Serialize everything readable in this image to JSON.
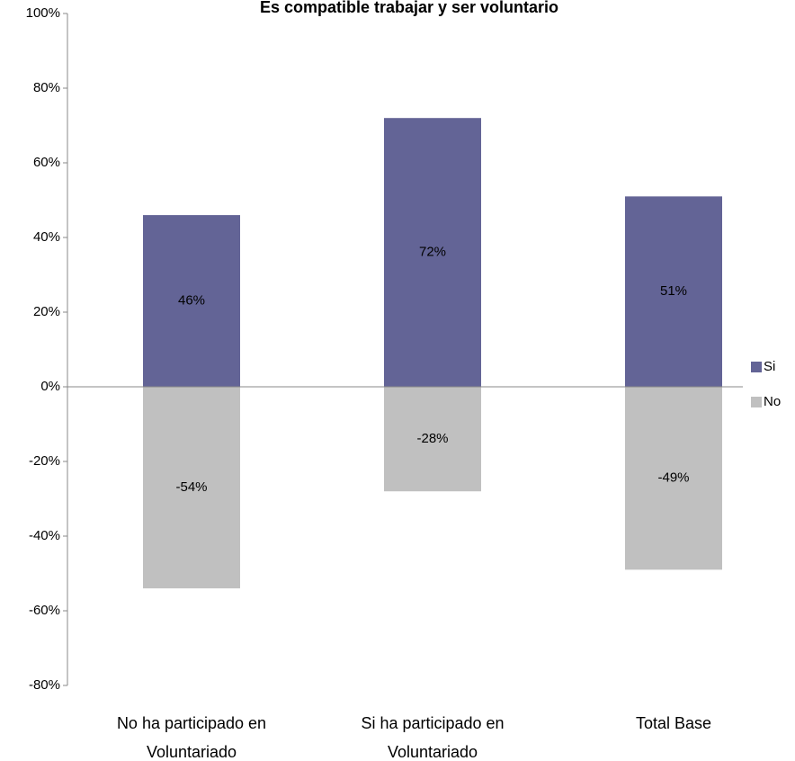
{
  "chart_data": {
    "type": "bar",
    "title": "Es compatible trabajar y ser voluntario",
    "categories": [
      "No ha participado en Voluntariado",
      "Si ha participado en Voluntariado",
      "Total Base"
    ],
    "series": [
      {
        "name": "Si",
        "color": "#636496",
        "values": [
          46,
          72,
          51
        ],
        "value_labels": [
          "46%",
          "72%",
          "51%"
        ]
      },
      {
        "name": "No",
        "color": "#c0c0c0",
        "values": [
          -54,
          -28,
          -49
        ],
        "value_labels": [
          "-54%",
          "-28%",
          "-49%"
        ]
      }
    ],
    "ylim": [
      -80,
      100
    ],
    "yticks": [
      {
        "value": -80,
        "label": "-80%"
      },
      {
        "value": -60,
        "label": "-60%"
      },
      {
        "value": -40,
        "label": "-40%"
      },
      {
        "value": -20,
        "label": "-20%"
      },
      {
        "value": 0,
        "label": "0%"
      },
      {
        "value": 20,
        "label": "20%"
      },
      {
        "value": 40,
        "label": "40%"
      },
      {
        "value": 60,
        "label": "60%"
      },
      {
        "value": 80,
        "label": "80%"
      },
      {
        "value": 100,
        "label": "100%"
      }
    ],
    "legend": "right"
  }
}
